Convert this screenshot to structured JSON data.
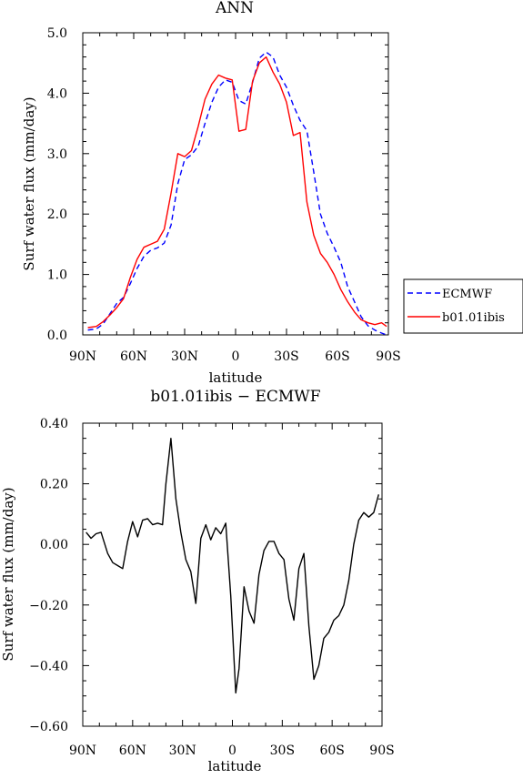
{
  "chart_data": [
    {
      "type": "line",
      "title": "ANN",
      "xlabel": "latitude",
      "ylabel": "Surf water flux (mm/day)",
      "x_tick_labels": [
        "90N",
        "60N",
        "30N",
        "0",
        "30S",
        "60S",
        "90S"
      ],
      "y_tick_labels": [
        "0.0",
        "1.0",
        "2.0",
        "3.0",
        "4.0",
        "5.0"
      ],
      "xlim": [
        90,
        -90
      ],
      "ylim": [
        0,
        5
      ],
      "legend_placement": "right",
      "series": [
        {
          "name": "ECMWF",
          "color": "#0000ff",
          "style": "dashed",
          "x": [
            87,
            82,
            78,
            74,
            70,
            66,
            62,
            58,
            54,
            50,
            46,
            42,
            38,
            34,
            30,
            26,
            22,
            18,
            14,
            10,
            6,
            2,
            -2,
            -6,
            -10,
            -14,
            -18,
            -22,
            -26,
            -30,
            -34,
            -38,
            -42,
            -46,
            -50,
            -54,
            -58,
            -62,
            -66,
            -70,
            -74,
            -78,
            -82,
            -86,
            -89
          ],
          "y": [
            0.08,
            0.1,
            0.18,
            0.35,
            0.52,
            0.62,
            0.85,
            1.1,
            1.3,
            1.4,
            1.44,
            1.52,
            1.82,
            2.5,
            2.9,
            2.98,
            3.12,
            3.5,
            3.85,
            4.1,
            4.22,
            4.18,
            3.88,
            3.82,
            4.18,
            4.58,
            4.68,
            4.6,
            4.3,
            4.1,
            3.8,
            3.55,
            3.38,
            2.7,
            2.0,
            1.68,
            1.45,
            1.2,
            0.8,
            0.55,
            0.3,
            0.15,
            0.08,
            0.03,
            0.0
          ]
        },
        {
          "name": "b01.01ibis",
          "color": "#ff0000",
          "style": "solid",
          "x": [
            87,
            82,
            78,
            74,
            70,
            66,
            62,
            58,
            54,
            50,
            46,
            42,
            38,
            34,
            30,
            26,
            22,
            18,
            14,
            10,
            6,
            2,
            -2,
            -6,
            -10,
            -14,
            -18,
            -22,
            -26,
            -30,
            -34,
            -38,
            -42,
            -46,
            -50,
            -54,
            -58,
            -62,
            -66,
            -70,
            -74,
            -78,
            -82,
            -86,
            -89
          ],
          "y": [
            0.12,
            0.14,
            0.22,
            0.33,
            0.45,
            0.6,
            0.95,
            1.25,
            1.45,
            1.5,
            1.55,
            1.75,
            2.35,
            3.0,
            2.95,
            3.05,
            3.45,
            3.9,
            4.15,
            4.3,
            4.25,
            4.22,
            3.37,
            3.4,
            4.2,
            4.5,
            4.6,
            4.35,
            4.15,
            3.85,
            3.3,
            3.35,
            2.2,
            1.65,
            1.35,
            1.2,
            1.0,
            0.75,
            0.55,
            0.38,
            0.25,
            0.2,
            0.17,
            0.2,
            0.14
          ]
        }
      ]
    },
    {
      "type": "line",
      "title": "b01.01ibis − ECMWF",
      "xlabel": "latitude",
      "ylabel": "Surf water flux (mm/day)",
      "x_tick_labels": [
        "90N",
        "60N",
        "30N",
        "0",
        "30S",
        "60S",
        "90S"
      ],
      "y_tick_labels": [
        "0.40",
        "0.20",
        "0.00",
        "−0.20",
        "−0.40",
        "−0.60"
      ],
      "xlim": [
        90,
        -90
      ],
      "ylim": [
        -0.6,
        0.4
      ],
      "series": [
        {
          "name": "",
          "color": "#000000",
          "style": "solid",
          "x": [
            88,
            85,
            82,
            79,
            75,
            72,
            69,
            66,
            63,
            60,
            57,
            54,
            51,
            48,
            45,
            42,
            40,
            37,
            34,
            31,
            28,
            25,
            22,
            19,
            16,
            13,
            10,
            7,
            4,
            1,
            -2,
            -4,
            -7,
            -10,
            -13,
            -16,
            -19,
            -22,
            -25,
            -28,
            -31,
            -34,
            -37,
            -40,
            -43,
            -46,
            -49,
            -52,
            -55,
            -58,
            -61,
            -64,
            -67,
            -70,
            -73,
            -76,
            -79,
            -82,
            -85,
            -88
          ],
          "y": [
            0.04,
            0.02,
            0.035,
            0.04,
            -0.03,
            -0.06,
            -0.07,
            -0.08,
            0.01,
            0.075,
            0.025,
            0.08,
            0.085,
            0.065,
            0.07,
            0.065,
            0.2,
            0.35,
            0.15,
            0.04,
            -0.05,
            -0.09,
            -0.195,
            0.02,
            0.065,
            0.015,
            0.055,
            0.035,
            0.07,
            -0.17,
            -0.49,
            -0.41,
            -0.14,
            -0.22,
            -0.26,
            -0.1,
            -0.02,
            0.01,
            0.01,
            -0.03,
            -0.05,
            -0.18,
            -0.25,
            -0.08,
            -0.03,
            -0.27,
            -0.445,
            -0.4,
            -0.31,
            -0.29,
            -0.25,
            -0.235,
            -0.2,
            -0.12,
            0.0,
            0.08,
            0.105,
            0.09,
            0.105,
            0.165
          ]
        }
      ]
    }
  ]
}
